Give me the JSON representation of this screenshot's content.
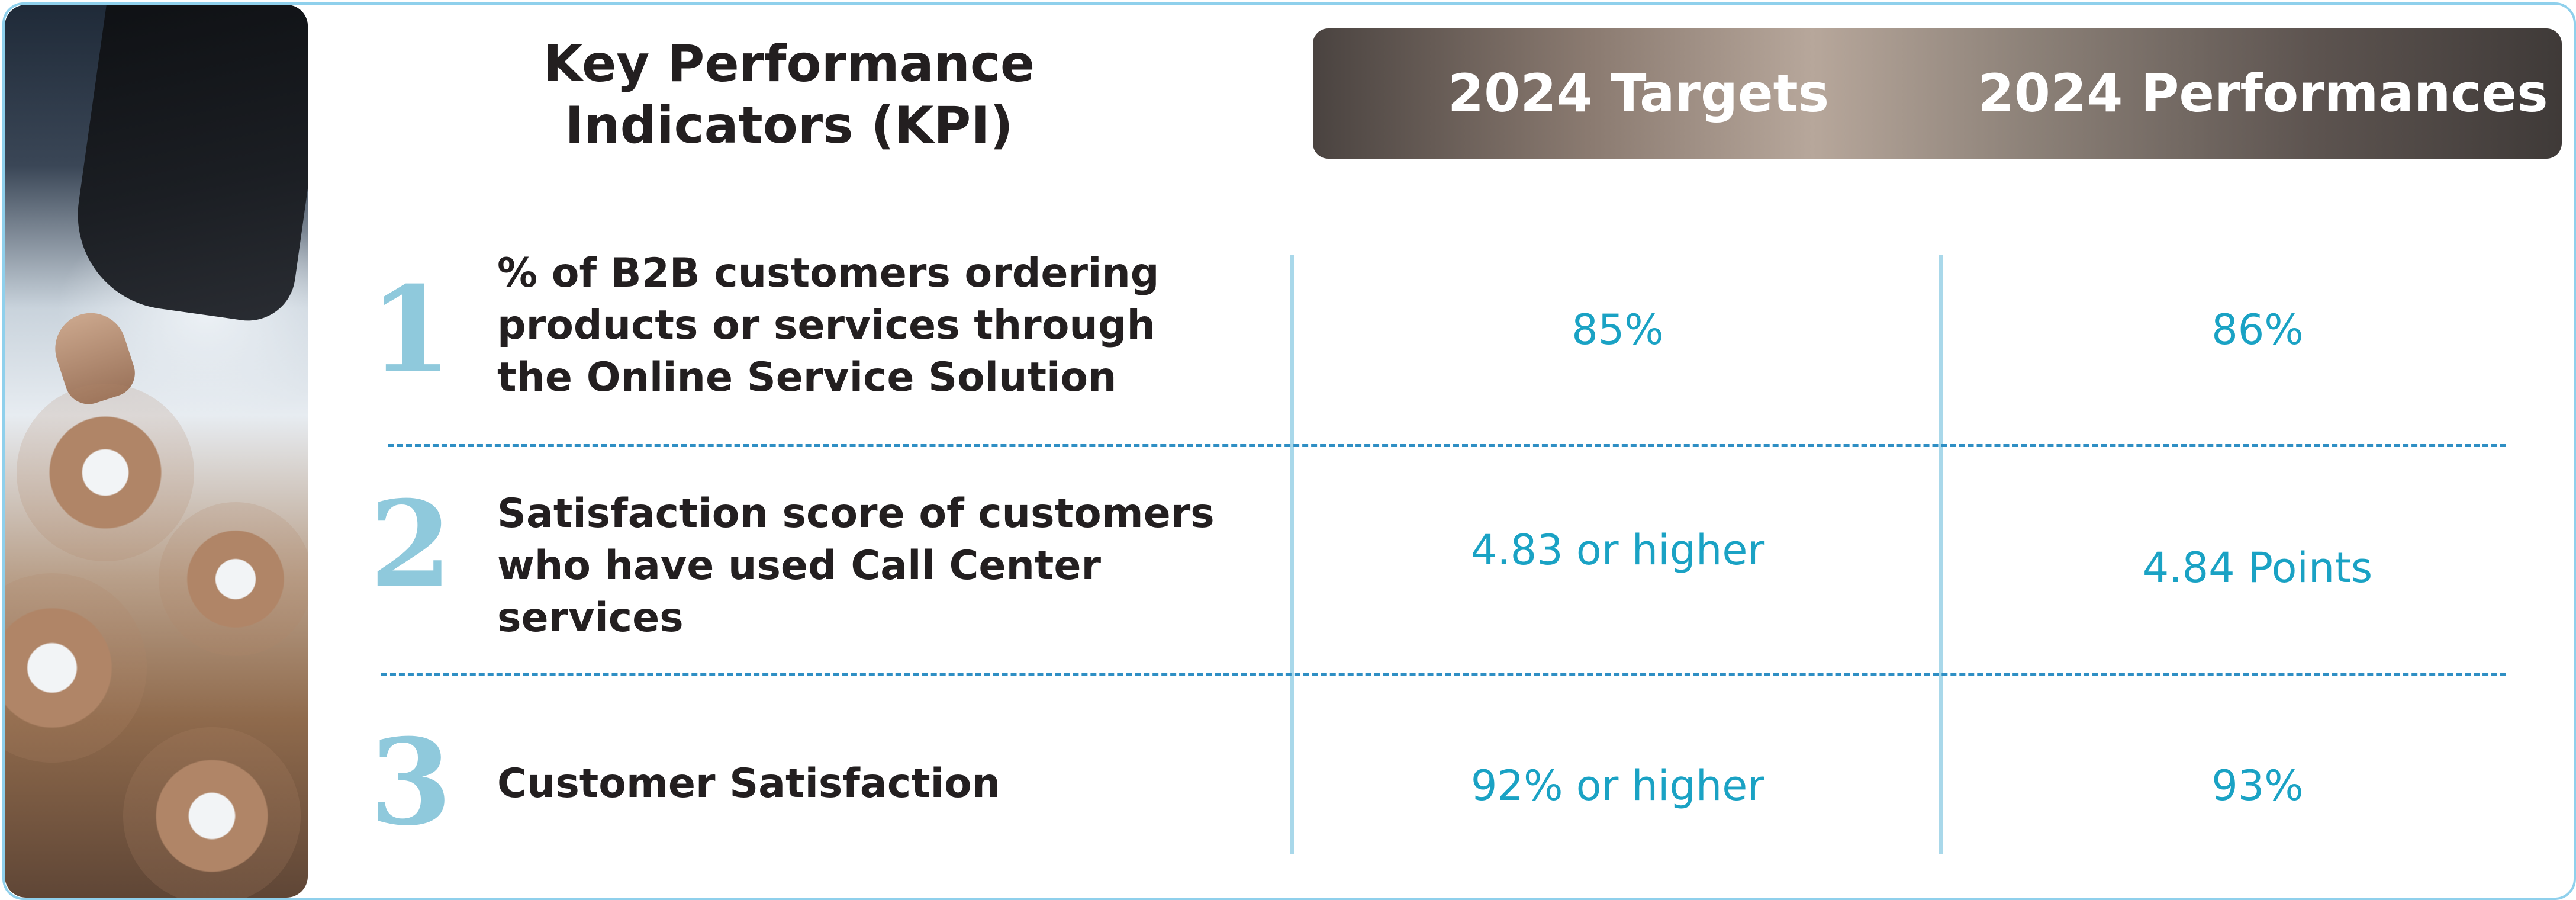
{
  "title": {
    "line1": "Key Performance",
    "line2": "Indicators (KPI)"
  },
  "header": {
    "targets": "2024 Targets",
    "performances": "2024 Performances"
  },
  "rows": [
    {
      "number": "1",
      "label_lines": [
        "% of B2B customers ordering",
        "products or services through",
        "the Online Service Solution"
      ],
      "target": "85%",
      "performance": "86%"
    },
    {
      "number": "2",
      "label_lines": [
        "Satisfaction score of customers",
        "who have used Call Center",
        "services"
      ],
      "target": "4.83 or higher",
      "performance": "4.84 Points"
    },
    {
      "number": "3",
      "label_lines": [
        "Customer Satisfaction"
      ],
      "target": "92% or higher",
      "performance": "93%"
    }
  ],
  "colors": {
    "accent": "#1aa2c4",
    "number": "#8fc9dc",
    "divider": "#2f8fc4",
    "border": "#8fd0ec",
    "text": "#231f20"
  }
}
